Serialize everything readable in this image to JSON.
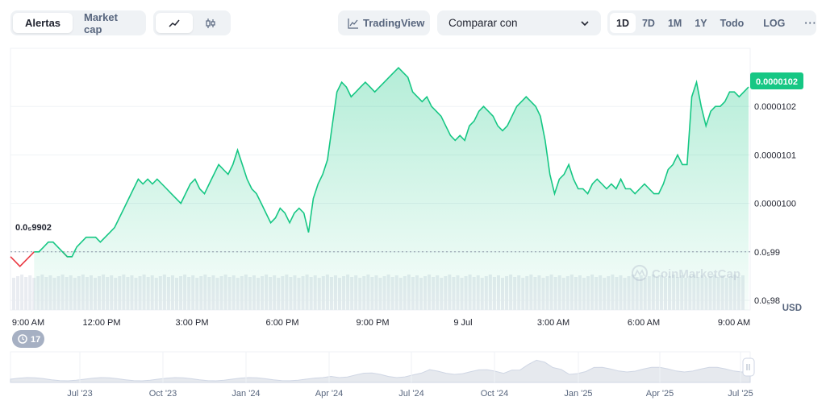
{
  "toolbar": {
    "view_tabs": [
      "Alertas",
      "Market cap"
    ],
    "active_view": "Alertas",
    "chart_type_icons": [
      "line-chart-icon",
      "candlestick-icon"
    ],
    "tradingview_label": "TradingView",
    "compare_label": "Comparar con",
    "timeframes": [
      "1D",
      "7D",
      "1M",
      "1Y",
      "Todo"
    ],
    "active_timeframe": "1D",
    "log_label": "LOG",
    "more_label": "···"
  },
  "price_tag": "0.0000102",
  "baseline_label": "0.0₅9902",
  "y_axis_labels": [
    {
      "label": "0.0000102",
      "value": 1.02e-05
    },
    {
      "label": "0.0000101",
      "value": 1.01e-05
    },
    {
      "label": "0.0000100",
      "value": 1e-05
    },
    {
      "label": "0.0₅99",
      "value": 9.9e-06
    },
    {
      "label": "0.0₅98",
      "value": 9.8e-06
    }
  ],
  "currency_label": "USD",
  "watermark": "CoinMarketCap",
  "x_axis_labels": [
    "9:00 AM",
    "12:00 PM",
    "3:00 PM",
    "6:00 PM",
    "9:00 PM",
    "9 Jul",
    "3:00 AM",
    "6:00 AM",
    "9:00 AM"
  ],
  "events_badge": "17",
  "overview_labels": [
    "Jul '23",
    "Oct '23",
    "Jan '24",
    "Apr '24",
    "Jul '24",
    "Oct '24",
    "Jan '25",
    "Apr '25",
    "Jul '25"
  ],
  "colors": {
    "up": "#16c784",
    "down": "#ea3943",
    "text": "#58667e",
    "grid": "#eff2f5"
  },
  "chart_data": {
    "type": "area",
    "x_labels": [
      "9:00 AM",
      "12:00 PM",
      "3:00 PM",
      "6:00 PM",
      "9:00 PM",
      "9 Jul",
      "3:00 AM",
      "6:00 AM",
      "9:00 AM"
    ],
    "ylim": [
      9.78e-06,
      1.032e-05
    ],
    "baseline": 9.9e-06,
    "y": [
      9.89e-06,
      9.88e-06,
      9.87e-06,
      9.88e-06,
      9.89e-06,
      9.9e-06,
      9.9e-06,
      9.91e-06,
      9.92e-06,
      9.92e-06,
      9.91e-06,
      9.9e-06,
      9.89e-06,
      9.89e-06,
      9.91e-06,
      9.92e-06,
      9.93e-06,
      9.93e-06,
      9.93e-06,
      9.92e-06,
      9.93e-06,
      9.94e-06,
      9.95e-06,
      9.97e-06,
      9.99e-06,
      1.001e-05,
      1.003e-05,
      1.005e-05,
      1.004e-05,
      1.005e-05,
      1.004e-05,
      1.005e-05,
      1.004e-05,
      1.003e-05,
      1.002e-05,
      1.001e-05,
      1e-05,
      1.002e-05,
      1.004e-05,
      1.005e-05,
      1.003e-05,
      1.002e-05,
      1.004e-05,
      1.006e-05,
      1.008e-05,
      1.007e-05,
      1.006e-05,
      1.008e-05,
      1.011e-05,
      1.008e-05,
      1.005e-05,
      1.003e-05,
      1.002e-05,
      1e-05,
      9.98e-06,
      9.96e-06,
      9.97e-06,
      9.99e-06,
      9.98e-06,
      9.96e-06,
      9.98e-06,
      9.99e-06,
      9.98e-06,
      9.94e-06,
      1.001e-05,
      1.004e-05,
      1.006e-05,
      1.009e-05,
      1.016e-05,
      1.023e-05,
      1.025e-05,
      1.024e-05,
      1.022e-05,
      1.023e-05,
      1.024e-05,
      1.025e-05,
      1.024e-05,
      1.023e-05,
      1.024e-05,
      1.025e-05,
      1.026e-05,
      1.027e-05,
      1.028e-05,
      1.027e-05,
      1.026e-05,
      1.023e-05,
      1.022e-05,
      1.021e-05,
      1.022e-05,
      1.02e-05,
      1.019e-05,
      1.018e-05,
      1.016e-05,
      1.014e-05,
      1.013e-05,
      1.014e-05,
      1.013e-05,
      1.016e-05,
      1.017e-05,
      1.019e-05,
      1.02e-05,
      1.019e-05,
      1.018e-05,
      1.016e-05,
      1.015e-05,
      1.016e-05,
      1.018e-05,
      1.02e-05,
      1.021e-05,
      1.022e-05,
      1.021e-05,
      1.02e-05,
      1.018e-05,
      1.013e-05,
      1.006e-05,
      1.002e-05,
      1.005e-05,
      1.006e-05,
      1.008e-05,
      1.005e-05,
      1.003e-05,
      1.003e-05,
      1.002e-05,
      1.004e-05,
      1.005e-05,
      1.004e-05,
      1.003e-05,
      1.004e-05,
      1.003e-05,
      1.005e-05,
      1.003e-05,
      1.003e-05,
      1.002e-05,
      1.003e-05,
      1.004e-05,
      1.003e-05,
      1.002e-05,
      1.002e-05,
      1.004e-05,
      1.007e-05,
      1.008e-05,
      1.01e-05,
      1.008e-05,
      1.008e-05,
      1.022e-05,
      1.025e-05,
      1.02e-05,
      1.016e-05,
      1.019e-05,
      1.02e-05,
      1.02e-05,
      1.021e-05,
      1.023e-05,
      1.023e-05,
      1.022e-05,
      1.023e-05,
      1.024e-05
    ]
  }
}
